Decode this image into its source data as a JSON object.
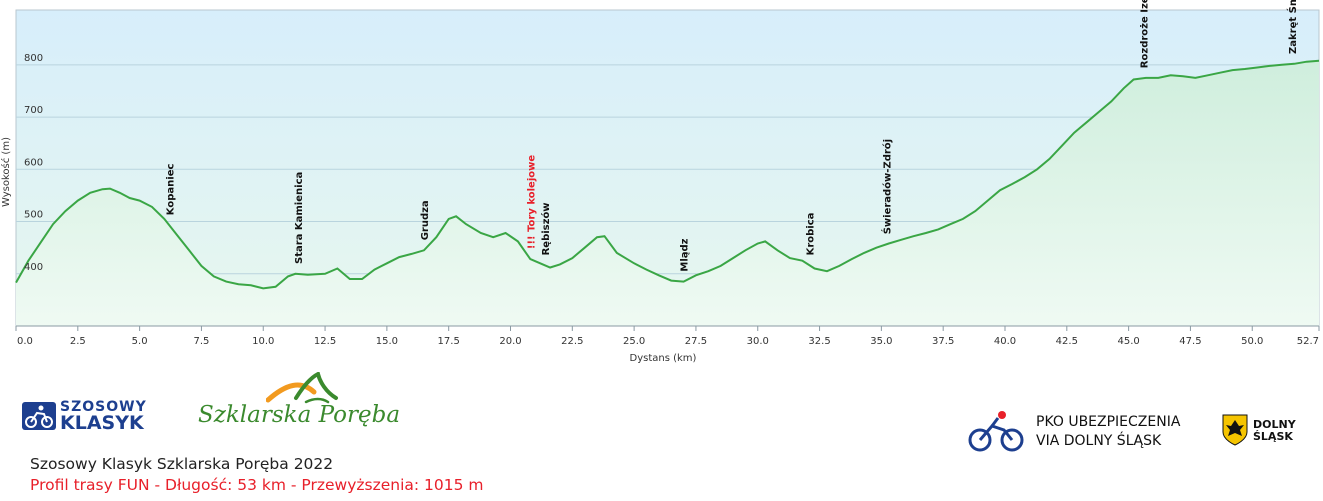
{
  "chart_data": {
    "type": "area",
    "title": "",
    "xlabel": "Dystans  (km)",
    "ylabel": "Wysokość (m)",
    "xlim": [
      0,
      52.7
    ],
    "ylim": [
      300,
      905
    ],
    "grid": true,
    "x_ticks": [
      "0.0",
      "2.5",
      "5.0",
      "7.5",
      "10.0",
      "12.5",
      "15.0",
      "17.5",
      "20.0",
      "22.5",
      "25.0",
      "27.5",
      "30.0",
      "32.5",
      "35.0",
      "37.5",
      "40.0",
      "42.5",
      "45.0",
      "47.5",
      "50.0",
      "52.7"
    ],
    "x_tick_values": [
      0,
      2.5,
      5,
      7.5,
      10,
      12.5,
      15,
      17.5,
      20,
      22.5,
      25,
      27.5,
      30,
      32.5,
      35,
      37.5,
      40,
      42.5,
      45,
      47.5,
      50,
      52.7
    ],
    "y_ticks": [
      "400",
      "500",
      "600",
      "700",
      "800"
    ],
    "y_tick_values": [
      400,
      500,
      600,
      700,
      800
    ],
    "line_color": "#3aa645",
    "series": [
      {
        "x": [
          0,
          0.5,
          1,
          1.5,
          2,
          2.5,
          3,
          3.5,
          3.8,
          4.2,
          4.6,
          5,
          5.5,
          6,
          6.5,
          7,
          7.5,
          8,
          8.5,
          9,
          9.5,
          10,
          10.5,
          11,
          11.3,
          11.8,
          12.5,
          13,
          13.5,
          14,
          14.5,
          15,
          15.5,
          16,
          16.5,
          17,
          17.5,
          17.8,
          18.2,
          18.8,
          19.3,
          19.8,
          20.3,
          20.8,
          21.2,
          21.6,
          22,
          22.5,
          23,
          23.5,
          23.8,
          24.3,
          25,
          25.5,
          26,
          26.5,
          27,
          27.5,
          28,
          28.5,
          29,
          29.5,
          30,
          30.3,
          30.8,
          31.3,
          31.8,
          32.3,
          32.8,
          33.3,
          33.8,
          34.3,
          34.8,
          35.3,
          35.8,
          36.3,
          36.8,
          37.3,
          37.8,
          38.3,
          38.8,
          39.3,
          39.8,
          40.3,
          40.8,
          41.3,
          41.8,
          42.3,
          42.8,
          43.3,
          43.8,
          44.3,
          44.8,
          45.2,
          45.7,
          46.2,
          46.7,
          47.2,
          47.7,
          48.2,
          48.7,
          49.2,
          49.7,
          50.2,
          50.7,
          51.2,
          51.7,
          52.2,
          52.7
        ],
        "values": [
          383,
          425,
          460,
          495,
          520,
          540,
          555,
          562,
          563,
          555,
          545,
          540,
          528,
          505,
          475,
          445,
          415,
          395,
          385,
          380,
          378,
          372,
          375,
          395,
          400,
          398,
          400,
          410,
          390,
          390,
          408,
          420,
          432,
          438,
          445,
          470,
          505,
          510,
          495,
          478,
          470,
          478,
          462,
          428,
          420,
          412,
          418,
          430,
          450,
          470,
          472,
          440,
          420,
          408,
          397,
          387,
          385,
          397,
          405,
          415,
          430,
          445,
          458,
          462,
          445,
          430,
          425,
          410,
          405,
          415,
          428,
          440,
          450,
          458,
          465,
          472,
          478,
          485,
          495,
          505,
          520,
          540,
          560,
          572,
          585,
          600,
          620,
          645,
          670,
          690,
          710,
          730,
          755,
          772,
          775,
          775,
          780,
          778,
          775,
          780,
          785,
          790,
          792,
          795,
          798,
          800,
          802,
          806,
          808
        ]
      }
    ],
    "annotations": [
      {
        "text": "Kopaniec",
        "x": 6.2,
        "warning": false
      },
      {
        "text": "Stara Kamienica",
        "x": 11.4,
        "warning": false
      },
      {
        "text": "Grudza",
        "x": 16.5,
        "warning": false
      },
      {
        "text": "!!! Tory kolejowe",
        "x": 20.8,
        "warning": true
      },
      {
        "text": "Rębiszów",
        "x": 21.4,
        "warning": false
      },
      {
        "text": "Mlądz",
        "x": 27.0,
        "warning": false
      },
      {
        "text": "Krobica",
        "x": 32.1,
        "warning": false
      },
      {
        "text": "Świeradów-Zdrój",
        "x": 35.2,
        "warning": false
      },
      {
        "text": "Rozdroże Izerskie",
        "x": 45.6,
        "warning": false
      },
      {
        "text": "Zakręt Śmierci",
        "x": 51.6,
        "warning": false
      }
    ]
  },
  "footer": {
    "logo_szosowy_line1": "SZOSOWY",
    "logo_szosowy_line2": "KLASYK",
    "logo_szklarska": "Szklarska Poręba",
    "logo_pko_line1": "PKO UBEZPIECZENIA",
    "logo_pko_line2": "VIA DOLNY ŚLĄSK",
    "logo_dolny_line1": "DOLNY",
    "logo_dolny_line2": "ŚLĄSK",
    "title": "Szosowy Klasyk Szklarska Poręba 2022",
    "subtitle": "Profil trasy FUN - Długość: 53 km - Przewyższenia: 1015 m",
    "accent_red": "#e8202a",
    "brand_blue": "#1d3f8f",
    "brand_green": "#3b8a2e"
  }
}
